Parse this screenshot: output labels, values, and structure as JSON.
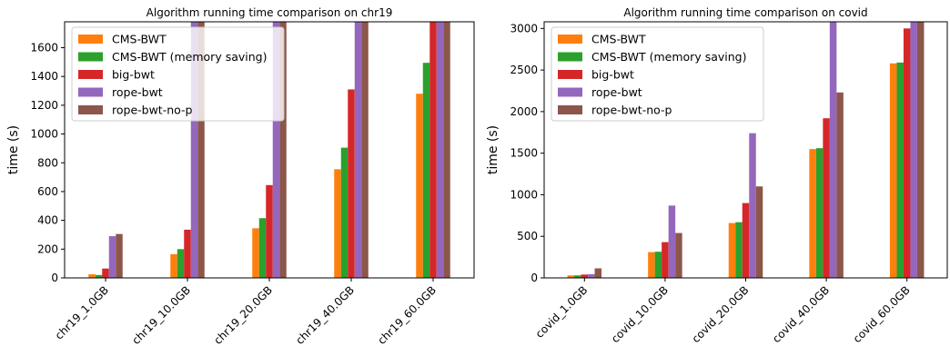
{
  "chart_data": [
    {
      "type": "bar",
      "title": "Algorithm running time comparison on chr19",
      "xlabel": "",
      "ylabel": "time (s)",
      "ylim": [
        0,
        1780
      ],
      "yticks": [
        0,
        200,
        400,
        600,
        800,
        1000,
        1200,
        1400,
        1600
      ],
      "categories": [
        "chr19_1.0GB",
        "chr19_10.0GB",
        "chr19_20.0GB",
        "chr19_40.0GB",
        "chr19_60.0GB"
      ],
      "series": [
        {
          "name": "CMS-BWT",
          "color": "#ff7f0e",
          "values": [
            25,
            165,
            345,
            755,
            1280
          ]
        },
        {
          "name": "CMS-BWT (memory saving)",
          "color": "#2ca02c",
          "values": [
            20,
            200,
            415,
            905,
            1495
          ]
        },
        {
          "name": "big-bwt",
          "color": "#d62728",
          "values": [
            65,
            335,
            645,
            1310,
            1780
          ]
        },
        {
          "name": "rope-bwt",
          "color": "#9467bd",
          "values": [
            290,
            1780,
            1780,
            1780,
            1780
          ]
        },
        {
          "name": "rope-bwt-no-p",
          "color": "#8c564b",
          "values": [
            305,
            1780,
            1780,
            1780,
            1780
          ]
        }
      ],
      "legend": "top-left",
      "grid": false
    },
    {
      "type": "bar",
      "title": "Algorithm running time comparison on covid",
      "xlabel": "",
      "ylabel": "time (s)",
      "ylim": [
        0,
        3080
      ],
      "yticks": [
        0,
        500,
        1000,
        1500,
        2000,
        2500,
        3000
      ],
      "categories": [
        "covid_1.0GB",
        "covid_10.0GB",
        "covid_20.0GB",
        "covid_40.0GB",
        "covid_60.0GB"
      ],
      "series": [
        {
          "name": "CMS-BWT",
          "color": "#ff7f0e",
          "values": [
            30,
            310,
            660,
            1550,
            2580
          ]
        },
        {
          "name": "CMS-BWT (memory saving)",
          "color": "#2ca02c",
          "values": [
            30,
            315,
            670,
            1560,
            2590
          ]
        },
        {
          "name": "big-bwt",
          "color": "#d62728",
          "values": [
            40,
            430,
            900,
            1920,
            3000
          ]
        },
        {
          "name": "rope-bwt",
          "color": "#9467bd",
          "values": [
            45,
            870,
            1740,
            3080,
            3080
          ]
        },
        {
          "name": "rope-bwt-no-p",
          "color": "#8c564b",
          "values": [
            115,
            540,
            1100,
            2230,
            3080
          ]
        }
      ],
      "legend": "top-left",
      "grid": false
    }
  ]
}
